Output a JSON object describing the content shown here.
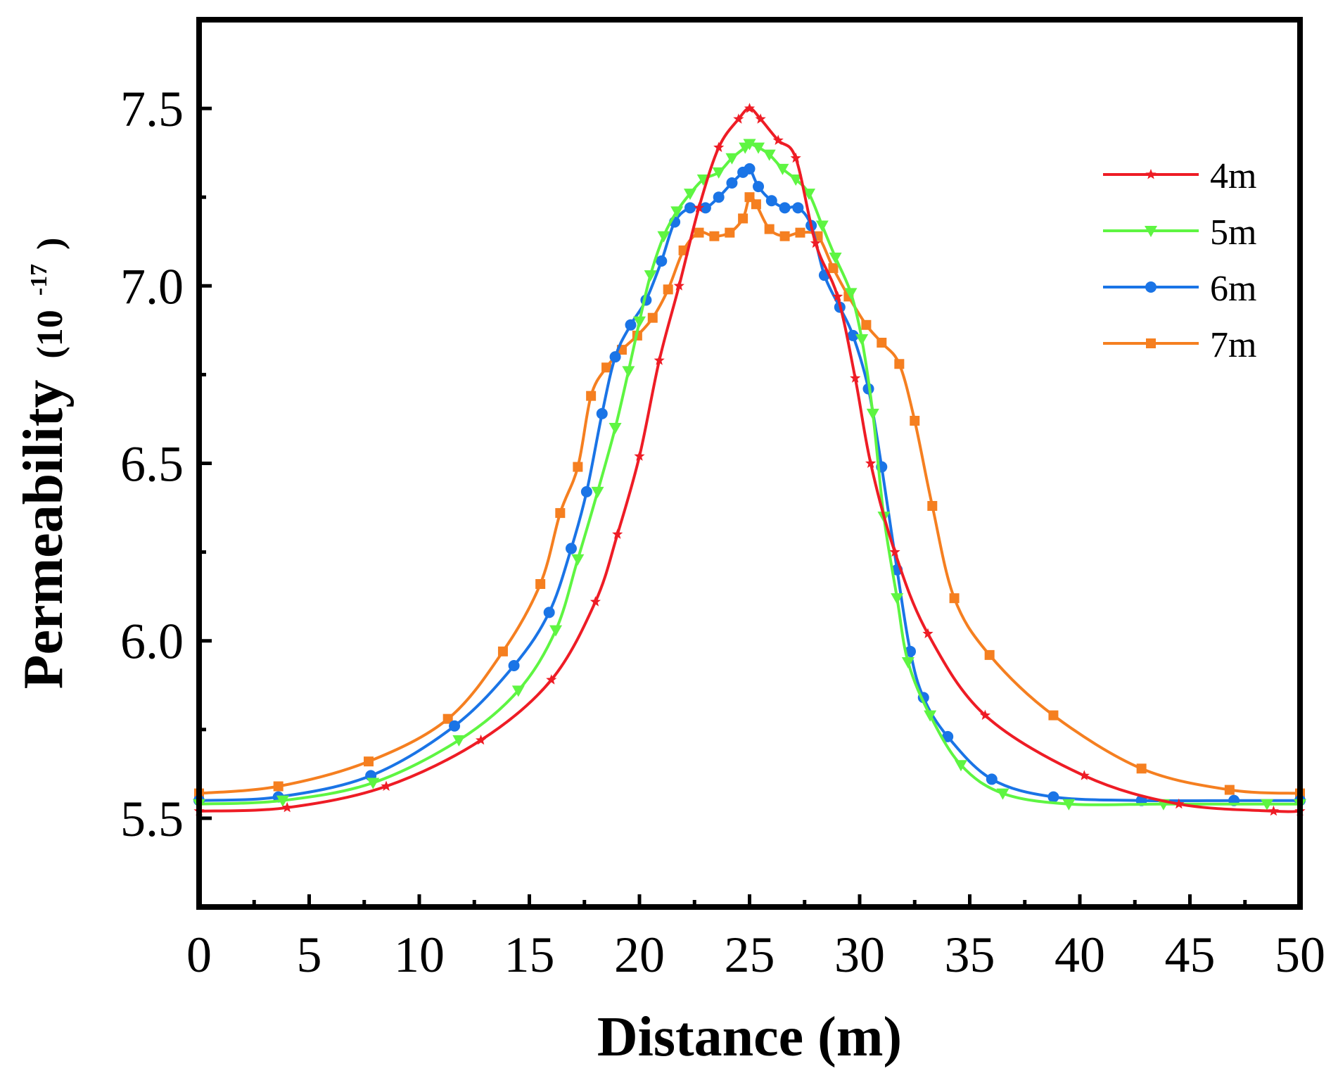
{
  "chart_data": {
    "type": "line",
    "title": "",
    "xlabel": "Distance (m)",
    "ylabel": "Permeability",
    "ylabel_unit_base": "(10",
    "ylabel_unit_exp": "-17",
    "ylabel_unit_close": ")",
    "xlim": [
      0,
      50
    ],
    "ylim": [
      5.25,
      7.75
    ],
    "xticks": [
      0,
      5,
      10,
      15,
      20,
      25,
      30,
      35,
      40,
      45,
      50
    ],
    "xtick_labels": [
      "0",
      "5",
      "10",
      "15",
      "20",
      "25",
      "30",
      "35",
      "40",
      "45",
      "50"
    ],
    "yticks": [
      5.5,
      6.0,
      6.5,
      7.0,
      7.5
    ],
    "ytick_labels": [
      "5.5",
      "6.0",
      "6.5",
      "7.0",
      "7.5"
    ],
    "grid": false,
    "legend_position": "top-right",
    "series": [
      {
        "name": "4m",
        "color": "#ee1c25",
        "marker": "star",
        "x": [
          0,
          4,
          8.5,
          12.8,
          16,
          18,
          19,
          20,
          20.9,
          21.8,
          22.7,
          23.6,
          24.5,
          25,
          25.5,
          26.3,
          27.1,
          28,
          29,
          29.8,
          30.5,
          31.6,
          33.1,
          35.7,
          40.2,
          44.5,
          48.8,
          50
        ],
        "y": [
          5.52,
          5.53,
          5.59,
          5.72,
          5.89,
          6.11,
          6.3,
          6.52,
          6.79,
          7.0,
          7.22,
          7.39,
          7.47,
          7.5,
          7.47,
          7.41,
          7.36,
          7.12,
          6.97,
          6.74,
          6.5,
          6.25,
          6.02,
          5.79,
          5.62,
          5.54,
          5.52,
          5.52
        ]
      },
      {
        "name": "5m",
        "color": "#5ef542",
        "marker": "triangle-down",
        "x": [
          0,
          3.8,
          7.9,
          11.8,
          14.5,
          16.2,
          17.2,
          18.1,
          18.9,
          19.5,
          20,
          20.5,
          21.1,
          21.7,
          22.3,
          22.9,
          23.6,
          24.2,
          24.8,
          25,
          25.4,
          25.9,
          26.5,
          27.1,
          27.7,
          28.3,
          28.9,
          29.6,
          30.1,
          30.6,
          31.1,
          31.7,
          32.2,
          33.2,
          34.6,
          36.5,
          39.5,
          43.8,
          48.5,
          50
        ],
        "y": [
          5.54,
          5.55,
          5.6,
          5.72,
          5.86,
          6.03,
          6.23,
          6.42,
          6.6,
          6.76,
          6.9,
          7.03,
          7.14,
          7.21,
          7.26,
          7.3,
          7.32,
          7.36,
          7.39,
          7.4,
          7.39,
          7.37,
          7.33,
          7.3,
          7.26,
          7.17,
          7.08,
          6.98,
          6.85,
          6.64,
          6.35,
          6.12,
          5.94,
          5.79,
          5.65,
          5.57,
          5.54,
          5.54,
          5.54,
          5.54
        ]
      },
      {
        "name": "6m",
        "color": "#1a74e6",
        "marker": "circle",
        "x": [
          0,
          3.6,
          7.8,
          11.6,
          14.3,
          15.9,
          16.9,
          17.6,
          18.3,
          18.9,
          19.6,
          20.3,
          21,
          21.6,
          22.3,
          23,
          23.6,
          24.2,
          24.7,
          25,
          25.4,
          26,
          26.6,
          27.2,
          27.8,
          28.4,
          29.1,
          29.7,
          30.4,
          31,
          31.7,
          32.3,
          32.9,
          34,
          36,
          38.8,
          42.8,
          47,
          50
        ],
        "y": [
          5.55,
          5.56,
          5.62,
          5.76,
          5.93,
          6.08,
          6.26,
          6.42,
          6.64,
          6.8,
          6.89,
          6.96,
          7.07,
          7.18,
          7.22,
          7.22,
          7.25,
          7.29,
          7.32,
          7.33,
          7.28,
          7.24,
          7.22,
          7.22,
          7.17,
          7.03,
          6.94,
          6.86,
          6.71,
          6.49,
          6.2,
          5.97,
          5.84,
          5.73,
          5.61,
          5.56,
          5.55,
          5.55,
          5.55
        ]
      },
      {
        "name": "7m",
        "color": "#f57f20",
        "marker": "square",
        "x": [
          0,
          3.6,
          7.7,
          11.3,
          13.8,
          15.5,
          16.4,
          17.2,
          17.8,
          18.5,
          19.2,
          19.9,
          20.6,
          21.3,
          22,
          22.7,
          23.4,
          24.1,
          24.7,
          25,
          25.3,
          25.9,
          26.6,
          27.3,
          28.1,
          28.8,
          29.5,
          30.3,
          31,
          31.8,
          32.5,
          33.3,
          34.3,
          35.9,
          38.8,
          42.8,
          46.8,
          50
        ],
        "y": [
          5.57,
          5.59,
          5.66,
          5.78,
          5.97,
          6.16,
          6.36,
          6.49,
          6.69,
          6.77,
          6.82,
          6.86,
          6.91,
          6.99,
          7.1,
          7.15,
          7.14,
          7.15,
          7.19,
          7.25,
          7.23,
          7.16,
          7.14,
          7.15,
          7.14,
          7.05,
          6.97,
          6.89,
          6.84,
          6.78,
          6.62,
          6.38,
          6.12,
          5.96,
          5.79,
          5.64,
          5.58,
          5.57
        ]
      }
    ]
  }
}
